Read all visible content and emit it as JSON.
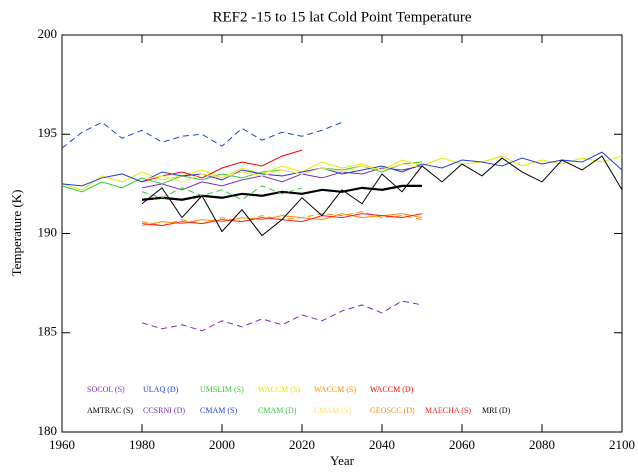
{
  "chart_data": {
    "type": "line",
    "title": "REF2 -15 to 15 lat Cold Point Temperature",
    "x_label": "Year",
    "y_label": "Temperature (K)",
    "xlim": [
      1960,
      2100
    ],
    "xticks": [
      1960,
      1980,
      2000,
      2020,
      2040,
      2060,
      2080,
      2100
    ],
    "ylim": [
      180,
      200
    ],
    "yticks": [
      180,
      185,
      190,
      195,
      200
    ],
    "series": [
      {
        "name": "SOCOL (S)",
        "color": "#7b2fbf",
        "dashed": false,
        "x": [
          1980,
          1985,
          1990,
          1995,
          2000,
          2005,
          2010,
          2015,
          2020,
          2025,
          2030,
          2035,
          2040,
          2045,
          2050
        ],
        "values": [
          192.3,
          192.5,
          192.2,
          192.6,
          192.4,
          192.7,
          192.9,
          192.6,
          193.0,
          192.8,
          193.1,
          193.0,
          193.3,
          193.2,
          193.4
        ]
      },
      {
        "name": "ULAQ (D)",
        "color": "#1f3fdc",
        "dashed": true,
        "x": [
          1960,
          1965,
          1970,
          1975,
          1980,
          1985,
          1990,
          1995,
          2000,
          2005,
          2010,
          2015,
          2020,
          2025,
          2030
        ],
        "values": [
          194.3,
          195.1,
          195.6,
          194.8,
          195.2,
          194.6,
          194.9,
          195.0,
          194.4,
          195.3,
          194.7,
          195.1,
          194.9,
          195.2,
          195.6
        ]
      },
      {
        "name": "UMSLIM (S)",
        "color": "#33cc33",
        "dashed": false,
        "x": [
          1960,
          1965,
          1970,
          1975,
          1980,
          1985,
          1990,
          1995,
          2000,
          2005,
          2010,
          2015,
          2020,
          2025,
          2030,
          2035,
          2040,
          2045,
          2050
        ],
        "values": [
          192.4,
          192.1,
          192.6,
          192.3,
          192.8,
          192.5,
          192.9,
          192.7,
          193.0,
          192.8,
          193.1,
          193.2,
          193.0,
          193.3,
          193.2,
          193.4,
          193.1,
          193.5,
          193.6
        ]
      },
      {
        "name": "WACCM (S)",
        "color": "#e6e600",
        "dashed": false,
        "x": [
          1960,
          1965,
          1970,
          1975,
          1980,
          1985,
          1990,
          1995,
          2000,
          2005,
          2010,
          2015,
          2020,
          2025,
          2030,
          2035,
          2040,
          2045,
          2050,
          2055,
          2060,
          2065,
          2070,
          2075,
          2080,
          2085,
          2090,
          2095,
          2100
        ],
        "values": [
          192.5,
          192.2,
          192.9,
          192.6,
          193.1,
          192.7,
          192.9,
          193.2,
          192.8,
          193.3,
          193.0,
          193.4,
          193.1,
          193.6,
          193.3,
          193.5,
          193.2,
          193.7,
          193.4,
          193.8,
          193.5,
          193.6,
          193.9,
          193.4,
          193.7,
          193.5,
          193.8,
          193.6,
          193.9
        ]
      },
      {
        "name": "WACCM (S)",
        "color": "#ff8c00",
        "dashed": false,
        "x": [
          1980,
          1985,
          1990,
          1995,
          2000,
          2005,
          2010,
          2015,
          2020,
          2025,
          2030,
          2035,
          2040,
          2045,
          2050
        ],
        "values": [
          190.4,
          190.6,
          190.5,
          190.7,
          190.6,
          190.8,
          190.7,
          190.9,
          190.8,
          190.7,
          191.0,
          190.8,
          190.9,
          191.0,
          190.8
        ]
      },
      {
        "name": "WACCM (D)",
        "color": "#ff0000",
        "dashed": false,
        "x": [
          1980,
          1985,
          1990,
          1995,
          2000,
          2005,
          2010,
          2015,
          2020
        ],
        "values": [
          192.6,
          192.9,
          193.1,
          192.8,
          193.3,
          193.6,
          193.4,
          193.9,
          194.2
        ]
      },
      {
        "name": "AMTRAC (S)",
        "color": "#000000",
        "dashed": false,
        "width": 2.2,
        "x": [
          1980,
          1985,
          1990,
          1995,
          2000,
          2005,
          2010,
          2015,
          2020,
          2025,
          2030,
          2035,
          2040,
          2045,
          2050
        ],
        "values": [
          191.7,
          191.8,
          191.7,
          191.9,
          191.8,
          192.0,
          191.9,
          192.1,
          192.0,
          192.2,
          192.1,
          192.3,
          192.2,
          192.4,
          192.4
        ]
      },
      {
        "name": "CCSRNI (D)",
        "color": "#7b2fbf",
        "dashed": true,
        "x": [
          1980,
          1985,
          1990,
          1995,
          2000,
          2005,
          2010,
          2015,
          2020,
          2025,
          2030,
          2035,
          2040,
          2045,
          2050
        ],
        "values": [
          185.5,
          185.2,
          185.4,
          185.1,
          185.6,
          185.3,
          185.7,
          185.4,
          185.9,
          185.6,
          186.1,
          186.4,
          186.0,
          186.6,
          186.4
        ]
      },
      {
        "name": "CMAM (S)",
        "color": "#1f3fdc",
        "dashed": false,
        "x": [
          1960,
          1965,
          1970,
          1975,
          1980,
          1985,
          1990,
          1995,
          2000,
          2005,
          2010,
          2015,
          2020,
          2025,
          2030,
          2035,
          2040,
          2045,
          2050,
          2055,
          2060,
          2065,
          2070,
          2075,
          2080,
          2085,
          2090,
          2095,
          2100
        ],
        "values": [
          192.5,
          192.4,
          192.8,
          193.0,
          192.6,
          193.1,
          192.9,
          193.0,
          192.7,
          193.2,
          193.0,
          192.9,
          193.1,
          193.3,
          193.0,
          193.2,
          193.4,
          193.1,
          193.5,
          193.3,
          193.7,
          193.6,
          193.4,
          193.8,
          193.5,
          193.7,
          193.6,
          194.1,
          193.2
        ]
      },
      {
        "name": "CMAM (D)",
        "color": "#33cc33",
        "dashed": true,
        "x": [
          1980,
          1985,
          1990,
          1995,
          2000,
          2005,
          2010,
          2015,
          2020
        ],
        "values": [
          192.1,
          191.8,
          192.3,
          191.9,
          192.2,
          191.7,
          192.4,
          192.0,
          192.3
        ]
      },
      {
        "name": "CMAM (S)",
        "color": "#ffe066",
        "dashed": false,
        "x": [
          1980,
          1985,
          1990,
          1995,
          2000,
          2005,
          2010,
          2015,
          2020,
          2025,
          2030,
          2035,
          2040,
          2045,
          2050
        ],
        "values": [
          192.7,
          192.9,
          192.6,
          193.0,
          192.8,
          193.1,
          192.9,
          193.2,
          193.0,
          193.3,
          193.1,
          193.4,
          193.2,
          193.5,
          193.3
        ]
      },
      {
        "name": "GEOSCC (D)",
        "color": "#ff8c00",
        "dashed": true,
        "x": [
          1980,
          1985,
          1990,
          1995,
          2000,
          2005,
          2010,
          2015,
          2020,
          2025,
          2030,
          2035,
          2040,
          2045,
          2050
        ],
        "values": [
          190.6,
          190.4,
          190.7,
          190.5,
          190.8,
          190.6,
          190.9,
          190.7,
          190.8,
          191.0,
          190.9,
          191.1,
          190.8,
          190.9,
          190.7
        ]
      },
      {
        "name": "MAECHA (S)",
        "color": "#ff2020",
        "dashed": false,
        "x": [
          1980,
          1985,
          1990,
          1995,
          2000,
          2005,
          2010,
          2015,
          2020,
          2025,
          2030,
          2035,
          2040,
          2045,
          2050
        ],
        "values": [
          190.5,
          190.4,
          190.6,
          190.5,
          190.7,
          190.6,
          190.8,
          190.7,
          190.6,
          190.9,
          190.8,
          191.0,
          190.9,
          190.8,
          191.0
        ]
      },
      {
        "name": "MRI (D)",
        "color": "#000000",
        "dashed": false,
        "x": [
          1980,
          1985,
          1990,
          1995,
          2000,
          2005,
          2010,
          2015,
          2020,
          2025,
          2030,
          2035,
          2040,
          2045,
          2050,
          2055,
          2060,
          2065,
          2070,
          2075,
          2080,
          2085,
          2090,
          2095,
          2100
        ],
        "values": [
          191.5,
          192.3,
          190.8,
          191.9,
          190.1,
          191.2,
          189.9,
          190.7,
          191.8,
          190.9,
          192.2,
          191.5,
          193.0,
          192.1,
          193.4,
          192.6,
          193.5,
          192.9,
          193.8,
          193.1,
          192.6,
          193.7,
          193.2,
          193.9,
          192.2
        ]
      }
    ]
  }
}
